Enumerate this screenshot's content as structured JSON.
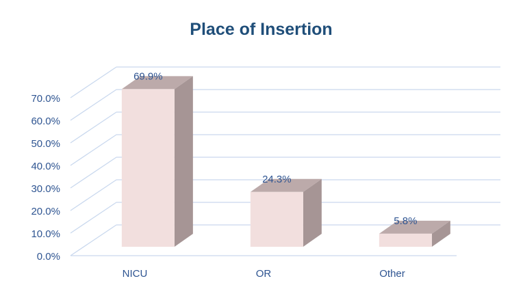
{
  "chart_data": {
    "type": "bar",
    "projection": "3d",
    "title": "Place of Insertion",
    "categories": [
      "NICU",
      "OR",
      "Other"
    ],
    "values": [
      69.9,
      24.3,
      5.8
    ],
    "data_labels": [
      "69.9%",
      "24.3%",
      "5.8%"
    ],
    "xlabel": "",
    "ylabel": "",
    "ylim": [
      0,
      70
    ],
    "ytick_step": 10,
    "ytick_labels": [
      "0.0%",
      "10.0%",
      "20.0%",
      "30.0%",
      "40.0%",
      "50.0%",
      "60.0%",
      "70.0%"
    ],
    "grid": true,
    "legend": false,
    "colors": {
      "title_text": "#1F4E79",
      "axis_text": "#2E5491",
      "gridline": "#C9D8EE",
      "bar_front": "#F2DFDE",
      "bar_top": "#BCAAAA",
      "bar_side": "#A69595"
    }
  }
}
